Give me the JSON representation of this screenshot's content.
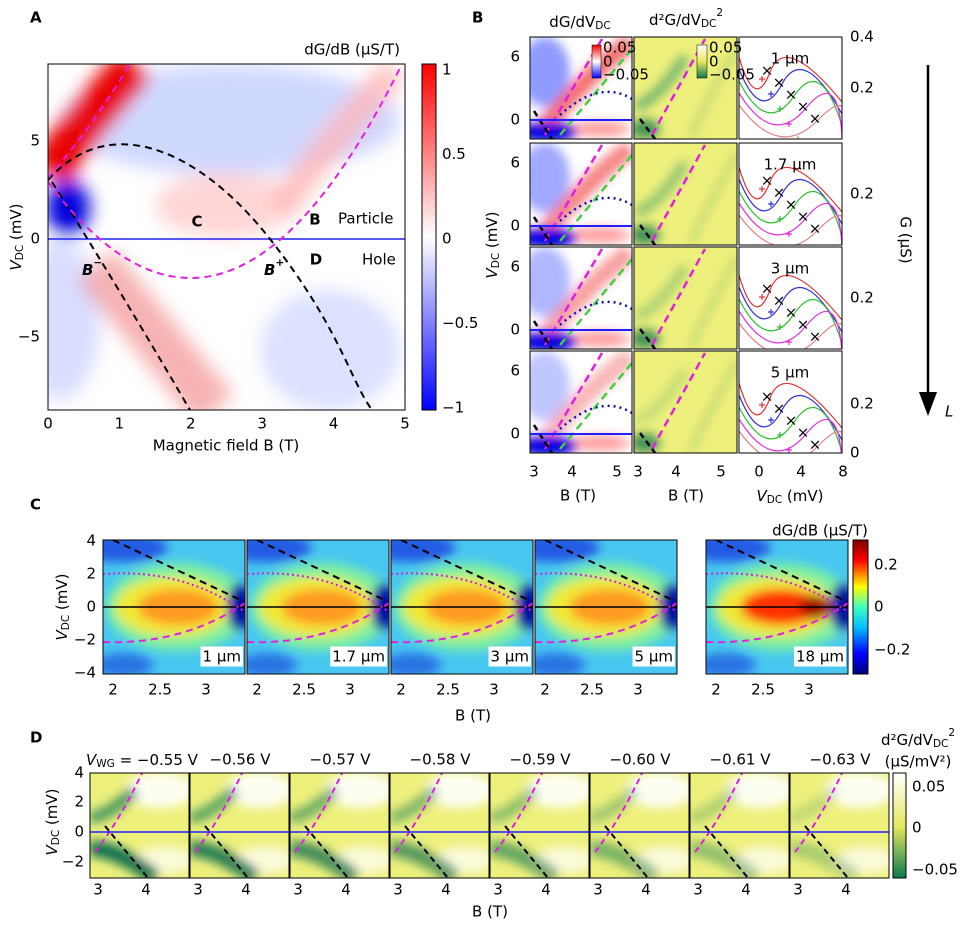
{
  "a": {
    "letter": "A",
    "cbar_title": "dG/dB (µS/T)",
    "cbar_ticks": [
      "1",
      "0.5",
      "0",
      "−0.5",
      "−1"
    ],
    "xticks": [
      "0",
      "1",
      "2",
      "3",
      "4",
      "5"
    ],
    "yticks": [
      "5",
      "0",
      "−5"
    ],
    "xlabel": "Magnetic field B (T)",
    "ylabel": {
      "v": "V",
      "sub": "DC",
      "unit": " (mV)"
    },
    "labels": {
      "c": "C",
      "b": "B",
      "particle": "Particle",
      "d": "D",
      "hole": "Hole",
      "bminus": {
        "b": "B",
        "sup": "−"
      },
      "bplus": {
        "b": "B",
        "sup": "+"
      }
    }
  },
  "b": {
    "letter": "B",
    "col1": {
      "main": "dG/dV",
      "sub": "DC"
    },
    "col2": {
      "main": "d²G/dV",
      "sub": "DC",
      "sup": "2"
    },
    "lengths": [
      "1 µm",
      "1.7 µm",
      "3 µm",
      "5 µm"
    ],
    "yticks": [
      [
        "6",
        "0"
      ],
      [
        "6",
        "0"
      ],
      [
        "6",
        "0"
      ],
      [
        "6",
        "0"
      ]
    ],
    "inset1_ticks": [
      "0.05",
      "0",
      "−0.05"
    ],
    "inset2_ticks": [
      "0.05",
      "0",
      "−0.05"
    ],
    "right_ticks": [
      [
        "0.4",
        "0.2"
      ],
      [
        "0.2"
      ],
      [
        "0.2"
      ],
      [
        "0.2",
        "0"
      ]
    ],
    "xticks_b1": [
      "3",
      "4",
      "5"
    ],
    "xticks_b2": [
      "3",
      "4",
      "5"
    ],
    "xticks_v": [
      "0",
      "4",
      "8"
    ],
    "xlabel_b1": "B (T)",
    "xlabel_b2": "B (T)",
    "xlabel_v": {
      "v": "V",
      "sub": "DC",
      "unit": " (mV)"
    },
    "ylabel": {
      "v": "V",
      "sub": "DC",
      "unit": " (mV)"
    },
    "glabel": "G (µS)",
    "arrow_label": "L"
  },
  "c": {
    "letter": "C",
    "lengths": [
      "1 µm",
      "1.7 µm",
      "3 µm",
      "5 µm",
      "18 µm"
    ],
    "yticks": [
      "4",
      "2",
      "0",
      "−2",
      "−4"
    ],
    "xticks": [
      [
        "2",
        "2.5",
        "3"
      ],
      [
        "2",
        "2.5",
        "3"
      ],
      [
        "2",
        "2.5",
        "3"
      ],
      [
        "2",
        "2.5",
        "3"
      ],
      [
        "2",
        "2.5",
        "3"
      ]
    ],
    "xlabel": "B (T)",
    "ylabel": {
      "v": "V",
      "sub": "DC",
      "unit": " (mV)"
    },
    "cbar_title": "dG/dB (µS/T)",
    "cbar_ticks": [
      "0.2",
      "0",
      "−0.2"
    ]
  },
  "d": {
    "letter": "D",
    "gate_prefix": {
      "v": "V",
      "sub": "WG",
      "eq": " = "
    },
    "gates": [
      "−0.55 V",
      "−0.56 V",
      "−0.57 V",
      "−0.58 V",
      "−0.59 V",
      "−0.60 V",
      "−0.61 V",
      "−0.63 V"
    ],
    "yticks": [
      "4",
      "2",
      "0",
      "−2"
    ],
    "xticks": [
      [
        "3",
        "4"
      ],
      [
        "3",
        "4"
      ],
      [
        "3",
        "4"
      ],
      [
        "3",
        "4"
      ],
      [
        "3",
        "4"
      ],
      [
        "3",
        "4"
      ],
      [
        "3",
        "4"
      ],
      [
        "3",
        "4"
      ]
    ],
    "xlabel": "B (T)",
    "ylabel": {
      "v": "V",
      "sub": "DC",
      "unit": " (mV)"
    },
    "cbar_title": {
      "main": "d²G/dV",
      "sub": "DC",
      "sup": "2"
    },
    "cbar_unit": "(µS/mV²)",
    "cbar_ticks": [
      "0.05",
      "0",
      "−0.05"
    ]
  }
}
